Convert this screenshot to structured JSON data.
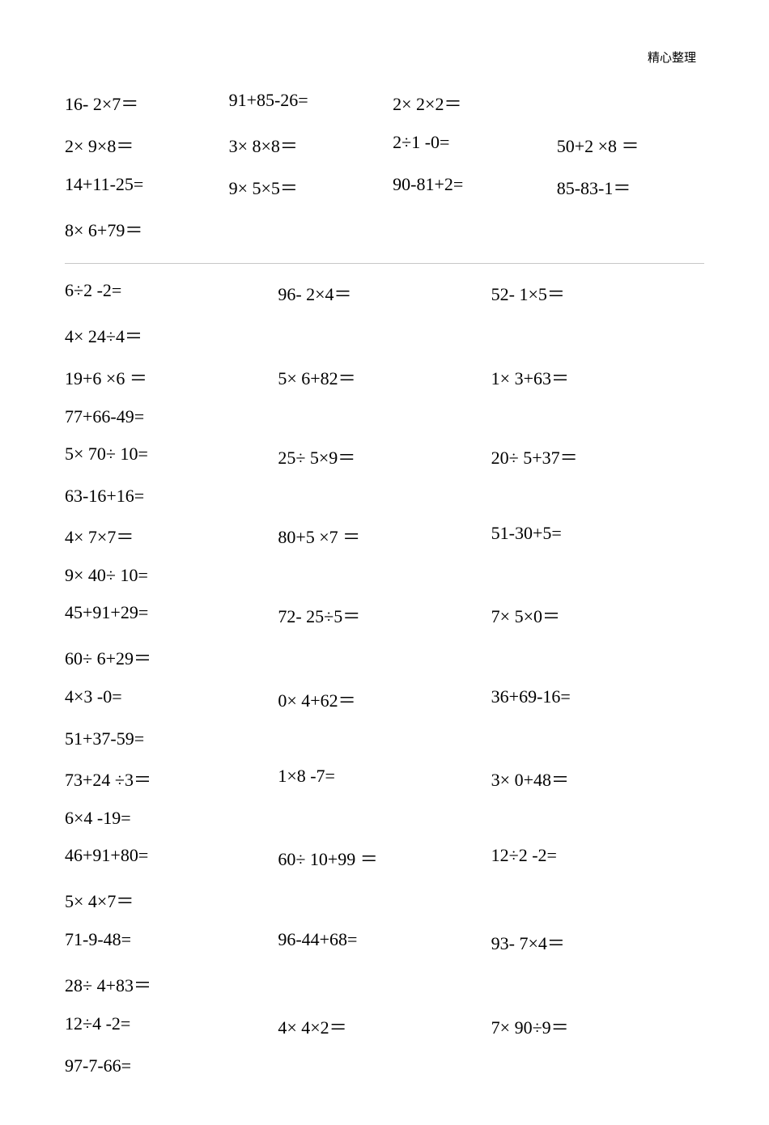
{
  "header": "精心整理",
  "top": {
    "rows": [
      [
        "16- 2×7＝",
        "91+85-26=",
        "2× 2×2＝",
        ""
      ],
      [
        "2× 9×8＝",
        "3× 8×8＝",
        "2÷1 -0=",
        "50+2 ×8 ＝"
      ],
      [
        "14+11-25=",
        "9× 5×5＝",
        "90-81+2=",
        "85-83-1＝"
      ],
      [
        "8× 6+79＝",
        "",
        "",
        ""
      ]
    ]
  },
  "main": {
    "rows": [
      [
        "6÷2 -2=",
        "96- 2×4＝",
        "52- 1×5＝"
      ],
      [
        "4× 24÷4＝",
        "",
        ""
      ],
      [
        "19+6 ×6 ＝",
        "5× 6+82＝",
        "1× 3+63＝"
      ],
      [
        "77+66-49=",
        "",
        ""
      ],
      [
        "5× 70÷ 10=",
        "25÷ 5×9＝",
        "20÷ 5+37＝"
      ],
      [
        "63-16+16=",
        "",
        ""
      ],
      [
        "4× 7×7＝",
        "80+5 ×7 ＝",
        "51-30+5="
      ],
      [
        "9× 40÷ 10=",
        "",
        ""
      ],
      [
        "45+91+29=",
        "72- 25÷5＝",
        "7× 5×0＝"
      ],
      [
        "60÷ 6+29＝",
        "",
        ""
      ],
      [
        "4×3 -0=",
        "0× 4+62＝",
        "36+69-16="
      ],
      [
        "51+37-59=",
        "",
        ""
      ],
      [
        "73+24 ÷3＝",
        "1×8 -7=",
        "3× 0+48＝"
      ],
      [
        "6×4 -19=",
        "",
        ""
      ],
      [
        "46+91+80=",
        "60÷ 10+99 ＝",
        "12÷2 -2="
      ],
      [
        "5× 4×7＝",
        "",
        ""
      ],
      [
        "71-9-48=",
        "96-44+68=",
        "93- 7×4＝"
      ],
      [
        "28÷ 4+83＝",
        "",
        ""
      ],
      [
        "12÷4 -2=",
        "4× 4×2＝",
        "7× 90÷9＝"
      ],
      [
        "97-7-66=",
        "",
        ""
      ]
    ]
  }
}
